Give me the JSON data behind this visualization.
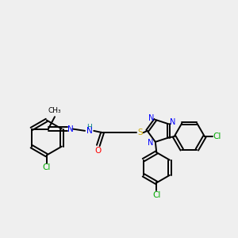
{
  "bg_color": "#efefef",
  "bond_color": "#000000",
  "N_color": "#0000ff",
  "O_color": "#ff0000",
  "S_color": "#ccaa00",
  "Cl_color": "#00aa00",
  "H_color": "#008080",
  "line_width": 1.4,
  "fig_width": 3.0,
  "fig_height": 3.0,
  "xlim": [
    0,
    10
  ],
  "ylim": [
    0,
    10
  ]
}
